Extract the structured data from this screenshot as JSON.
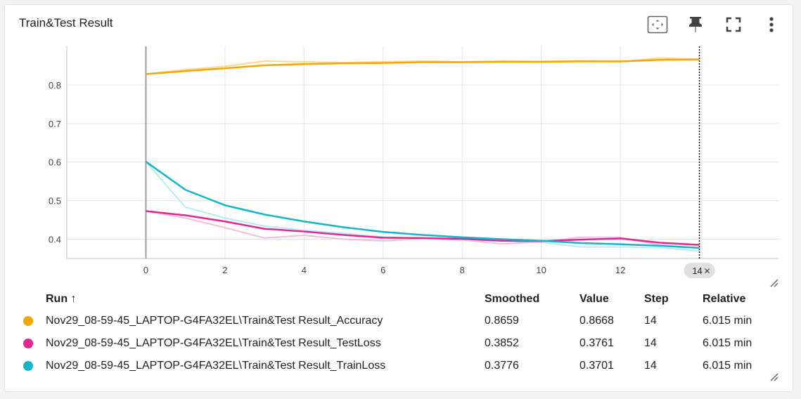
{
  "card": {
    "title": "Train&Test Result"
  },
  "toolbar": {
    "items": [
      {
        "icon": "fit-domain-icon"
      },
      {
        "icon": "pin-icon"
      },
      {
        "icon": "fullscreen-icon"
      },
      {
        "icon": "more-vert-icon"
      }
    ]
  },
  "chart_data": {
    "type": "line",
    "title": "",
    "xlabel": "",
    "ylabel": "",
    "xlim": [
      -2,
      16
    ],
    "ylim": [
      0.35,
      0.9
    ],
    "x_ticks": [
      0,
      2,
      4,
      6,
      8,
      10,
      12
    ],
    "y_ticks": [
      0.4,
      0.5,
      0.6,
      0.7,
      0.8
    ],
    "y_tick_labels": [
      "0.4",
      "0.5",
      "0.6",
      "0.7",
      "0.8"
    ],
    "grid": true,
    "hover_step": 14,
    "hover_step_label": "14",
    "x": [
      0,
      1,
      2,
      3,
      4,
      5,
      6,
      7,
      8,
      9,
      10,
      11,
      12,
      13,
      14
    ],
    "series": [
      {
        "name": "Nov29_08-59-45_LAPTOP-G4FA32EL\\Train&Test Result_Accuracy",
        "color": "#f5a700",
        "raw_color": "#fbd999",
        "raw": [
          0.828,
          0.84,
          0.848,
          0.862,
          0.86,
          0.858,
          0.86,
          0.862,
          0.86,
          0.862,
          0.861,
          0.863,
          0.86,
          0.87,
          0.8668
        ],
        "smoothed": [
          0.828,
          0.836,
          0.843,
          0.851,
          0.854,
          0.856,
          0.857,
          0.859,
          0.859,
          0.86,
          0.86,
          0.861,
          0.861,
          0.865,
          0.8659
        ]
      },
      {
        "name": "Nov29_08-59-45_LAPTOP-G4FA32EL\\Train&Test Result_TestLoss",
        "color": "#e52592",
        "raw_color": "#f5bcdc",
        "raw": [
          0.473,
          0.455,
          0.43,
          0.403,
          0.41,
          0.4,
          0.396,
          0.401,
          0.398,
          0.388,
          0.393,
          0.405,
          0.405,
          0.385,
          0.3761
        ],
        "smoothed": [
          0.473,
          0.462,
          0.446,
          0.427,
          0.42,
          0.411,
          0.404,
          0.403,
          0.401,
          0.396,
          0.395,
          0.399,
          0.402,
          0.391,
          0.3852
        ]
      },
      {
        "name": "Nov29_08-59-45_LAPTOP-G4FA32EL\\Train&Test Result_TrainLoss",
        "color": "#12b5cb",
        "raw_color": "#b3ecf4",
        "raw": [
          0.601,
          0.483,
          0.455,
          0.434,
          0.423,
          0.415,
          0.406,
          0.402,
          0.399,
          0.396,
          0.392,
          0.38,
          0.38,
          0.378,
          0.3701
        ],
        "smoothed": [
          0.601,
          0.528,
          0.488,
          0.464,
          0.446,
          0.431,
          0.419,
          0.411,
          0.405,
          0.4,
          0.396,
          0.39,
          0.387,
          0.383,
          0.3776
        ]
      }
    ]
  },
  "legend": {
    "headers": {
      "run": "Run ↑",
      "smoothed": "Smoothed",
      "value": "Value",
      "step": "Step",
      "relative": "Relative"
    },
    "rows": [
      {
        "color": "#f5a700",
        "run": "Nov29_08-59-45_LAPTOP-G4FA32EL\\Train&Test Result_Accuracy",
        "smoothed": "0.8659",
        "value": "0.8668",
        "step": "14",
        "relative": "6.015 min"
      },
      {
        "color": "#e52592",
        "run": "Nov29_08-59-45_LAPTOP-G4FA32EL\\Train&Test Result_TestLoss",
        "smoothed": "0.3852",
        "value": "0.3761",
        "step": "14",
        "relative": "6.015 min"
      },
      {
        "color": "#12b5cb",
        "run": "Nov29_08-59-45_LAPTOP-G4FA32EL\\Train&Test Result_TrainLoss",
        "smoothed": "0.3776",
        "value": "0.3701",
        "step": "14",
        "relative": "6.015 min"
      }
    ]
  }
}
